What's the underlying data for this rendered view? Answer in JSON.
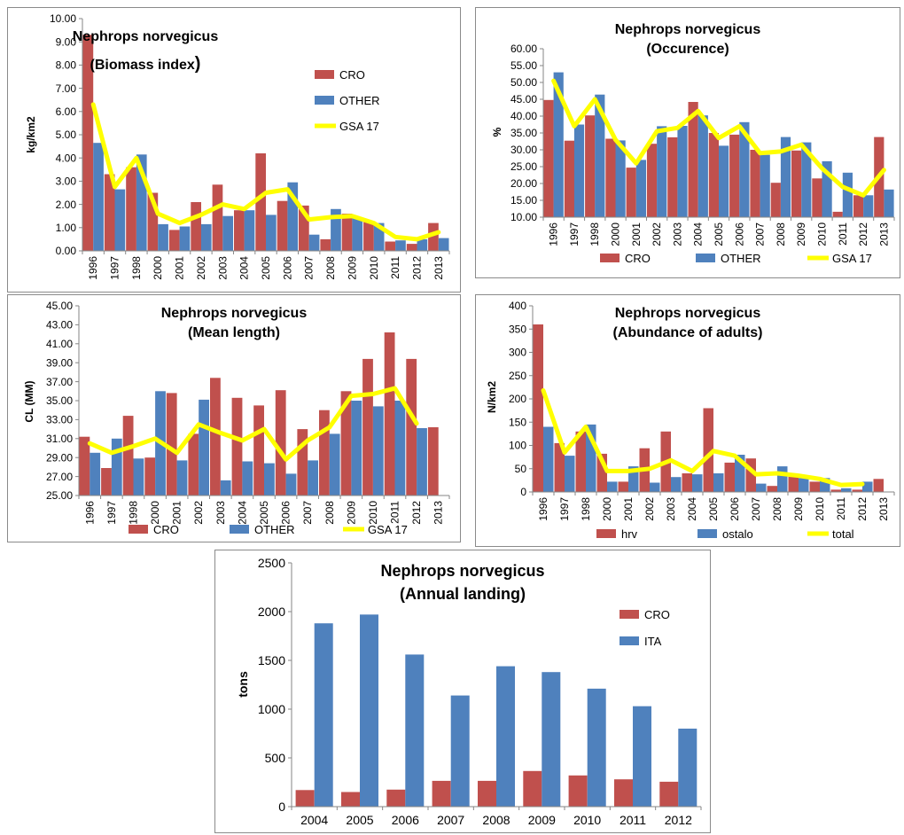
{
  "colors": {
    "red": "#c0504d",
    "blue": "#4f81bd",
    "yellow": "#ffff00"
  },
  "chart_data": [
    {
      "id": "biomass",
      "type": "bar",
      "title_line1": "Nephrops norvegicus",
      "title_line2": "(Biomass index",
      "title_suffix": ")",
      "xlabel": "",
      "ylabel": "kg/km2",
      "ylim": [
        0,
        10
      ],
      "ytick_step": 1,
      "ytick_labels": [
        "0.00",
        "1.00",
        "2.00",
        "3.00",
        "4.00",
        "5.00",
        "6.00",
        "7.00",
        "8.00",
        "9.00",
        "10.00"
      ],
      "categories": [
        "1996",
        "1997",
        "1998",
        "2000",
        "2001",
        "2002",
        "2003",
        "2004",
        "2005",
        "2006",
        "2007",
        "2008",
        "2009",
        "2010",
        "2011",
        "2012",
        "2013"
      ],
      "series": [
        {
          "name": "CRO",
          "kind": "bar",
          "color": "#c0504d",
          "values": [
            9.3,
            3.3,
            3.6,
            2.5,
            0.9,
            2.1,
            2.85,
            1.75,
            4.2,
            2.15,
            1.95,
            0.5,
            1.6,
            1.25,
            0.4,
            0.3,
            1.2
          ]
        },
        {
          "name": "OTHER",
          "kind": "bar",
          "color": "#4f81bd",
          "values": [
            4.65,
            2.65,
            4.15,
            1.15,
            1.05,
            1.15,
            1.5,
            1.75,
            1.55,
            2.95,
            0.7,
            1.8,
            1.4,
            1.2,
            0.45,
            0.5,
            0.55
          ]
        },
        {
          "name": "GSA 17",
          "kind": "line",
          "color": "#ffff00",
          "values": [
            6.3,
            2.75,
            4.0,
            1.6,
            1.2,
            1.55,
            2.0,
            1.8,
            2.5,
            2.65,
            1.35,
            1.45,
            1.5,
            1.2,
            0.6,
            0.5,
            0.8
          ]
        }
      ],
      "legend_position": "right"
    },
    {
      "id": "occurence",
      "type": "bar",
      "title_line1": "Nephrops norvegicus",
      "title_line2": "(Occurence)",
      "xlabel": "",
      "ylabel": "%",
      "ylim": [
        10,
        60
      ],
      "ytick_step": 5,
      "ytick_labels": [
        "10.00",
        "15.00",
        "20.00",
        "25.00",
        "30.00",
        "35.00",
        "40.00",
        "45.00",
        "50.00",
        "55.00",
        "60.00"
      ],
      "categories": [
        "1996",
        "1997",
        "1998",
        "2000",
        "2001",
        "2002",
        "2003",
        "2004",
        "2005",
        "2006",
        "2007",
        "2008",
        "2009",
        "2010",
        "2011",
        "2012",
        "2013"
      ],
      "series": [
        {
          "name": "CRO",
          "kind": "bar",
          "color": "#c0504d",
          "values": [
            44.8,
            32.7,
            40.2,
            33.3,
            24.7,
            31.8,
            33.7,
            44.2,
            35.0,
            34.5,
            30.0,
            20.2,
            29.8,
            21.5,
            11.6,
            16.5,
            33.8
          ]
        },
        {
          "name": "OTHER",
          "kind": "bar",
          "color": "#4f81bd",
          "values": [
            53.0,
            37.5,
            46.4,
            32.8,
            27.0,
            37.0,
            37.1,
            40.2,
            31.2,
            38.2,
            28.5,
            33.8,
            32.2,
            26.6,
            23.2,
            16.5,
            18.2
          ]
        },
        {
          "name": "GSA 17",
          "kind": "line",
          "color": "#ffff00",
          "values": [
            50.5,
            37.0,
            45.0,
            33.0,
            26.0,
            35.5,
            36.5,
            41.5,
            33.5,
            37.0,
            29.0,
            29.5,
            31.5,
            24.5,
            19.0,
            16.5,
            24.0
          ]
        }
      ],
      "legend_position": "bottom"
    },
    {
      "id": "mean-length",
      "type": "bar",
      "title_line1": "Nephrops norvegicus",
      "title_line2": "(Mean length)",
      "xlabel": "",
      "ylabel": "CL (MM)",
      "ylim": [
        25,
        45
      ],
      "ytick_step": 2,
      "ytick_labels": [
        "25.00",
        "27.00",
        "29.00",
        "31.00",
        "33.00",
        "35.00",
        "37.00",
        "39.00",
        "41.00",
        "43.00",
        "45.00"
      ],
      "categories": [
        "1996",
        "1997",
        "1998",
        "2000",
        "2001",
        "2002",
        "2003",
        "2004",
        "2005",
        "2006",
        "2007",
        "2008",
        "2009",
        "2010",
        "2011",
        "2012",
        "2013"
      ],
      "series": [
        {
          "name": "CRO",
          "kind": "bar",
          "color": "#c0504d",
          "values": [
            31.2,
            27.9,
            33.4,
            29.0,
            35.8,
            31.5,
            37.4,
            35.3,
            34.5,
            36.1,
            32.0,
            34.0,
            36.0,
            39.4,
            42.2,
            39.4,
            32.2
          ]
        },
        {
          "name": "OTHER",
          "kind": "bar",
          "color": "#4f81bd",
          "values": [
            29.5,
            31.0,
            28.9,
            36.0,
            28.7,
            35.1,
            26.6,
            28.6,
            28.4,
            27.3,
            28.7,
            31.5,
            35.0,
            34.4,
            35.0,
            32.1,
            null
          ]
        },
        {
          "name": "GSA 17",
          "kind": "line",
          "color": "#ffff00",
          "values": [
            30.5,
            29.5,
            30.2,
            31.0,
            29.5,
            32.5,
            31.6,
            30.8,
            32.0,
            28.8,
            30.8,
            32.2,
            35.5,
            35.7,
            36.3,
            32.6,
            null
          ]
        }
      ],
      "legend_position": "bottom"
    },
    {
      "id": "abundance",
      "type": "bar",
      "title_line1": "Nephrops norvegicus",
      "title_line2": "(Abundance of adults)",
      "xlabel": "",
      "ylabel": "N/km2",
      "ylim": [
        0,
        400
      ],
      "ytick_step": 50,
      "ytick_labels": [
        "0",
        "50",
        "100",
        "150",
        "200",
        "250",
        "300",
        "350",
        "400"
      ],
      "categories": [
        "1996",
        "1997",
        "1998",
        "2000",
        "2001",
        "2002",
        "2003",
        "2004",
        "2005",
        "2006",
        "2007",
        "2008",
        "2009",
        "2010",
        "2011",
        "2012",
        "2013"
      ],
      "series": [
        {
          "name": "hrv",
          "kind": "bar",
          "color": "#c0504d",
          "values": [
            360,
            105,
            130,
            82,
            22,
            94,
            130,
            40,
            180,
            63,
            72,
            13,
            38,
            22,
            5,
            5,
            28
          ]
        },
        {
          "name": "ostalo",
          "kind": "bar",
          "color": "#4f81bd",
          "values": [
            140,
            78,
            145,
            22,
            55,
            20,
            32,
            38,
            40,
            80,
            18,
            55,
            30,
            30,
            8,
            22,
            null
          ]
        },
        {
          "name": "total",
          "kind": "line",
          "color": "#ffff00",
          "values": [
            218,
            85,
            140,
            45,
            45,
            50,
            68,
            45,
            88,
            78,
            38,
            40,
            35,
            28,
            15,
            17,
            null
          ]
        }
      ],
      "legend_position": "bottom"
    },
    {
      "id": "landing",
      "type": "bar",
      "title_line1": "Nephrops norvegicus",
      "title_line2": "(Annual landing)",
      "xlabel": "",
      "ylabel": "tons",
      "ylim": [
        0,
        2500
      ],
      "ytick_step": 500,
      "ytick_labels": [
        "0",
        "500",
        "1000",
        "1500",
        "2000",
        "2500"
      ],
      "categories": [
        "2004",
        "2005",
        "2006",
        "2007",
        "2008",
        "2009",
        "2010",
        "2011",
        "2012"
      ],
      "series": [
        {
          "name": "CRO",
          "kind": "bar",
          "color": "#c0504d",
          "values": [
            170,
            150,
            175,
            265,
            265,
            365,
            320,
            280,
            255
          ]
        },
        {
          "name": "ITA",
          "kind": "bar",
          "color": "#4f81bd",
          "values": [
            1880,
            1970,
            1560,
            1140,
            1440,
            1380,
            1210,
            1030,
            800
          ]
        }
      ],
      "legend_position": "right"
    }
  ]
}
